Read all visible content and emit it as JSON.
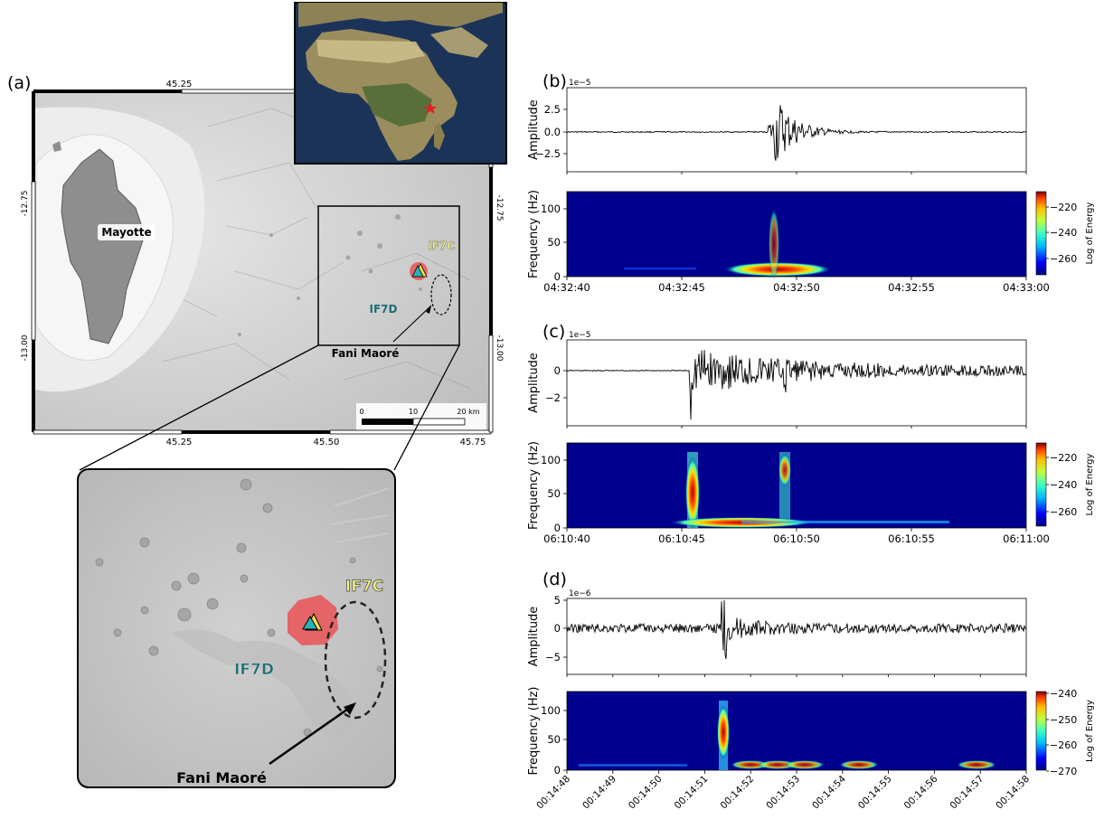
{
  "map_panel": {
    "letter": "(a)",
    "lon_ticks_top": [
      "45.25"
    ],
    "lon_ticks_bottom": [
      "45.25",
      "45.50",
      "45.75"
    ],
    "lat_ticks_left": [
      "-12.75",
      "-13.00"
    ],
    "lat_ticks_right": [
      "-12.75",
      "-13.00"
    ],
    "island_label": "Mayotte",
    "station_c": "IF7C",
    "station_d": "IF7D",
    "volcano_label": "Fani Maoré",
    "scale_labels": [
      "0",
      "10",
      "20 km"
    ]
  },
  "inset_map": {
    "marker": "epicentre-star"
  },
  "zoom_panel": {
    "station_c": "IF7C",
    "station_d": "IF7D",
    "volcano_label": "Fani Maoré"
  },
  "panels": [
    {
      "letter": "(b)",
      "exponent": "1e−5",
      "ylabel": "Amplitude",
      "yticks": [
        "2.5",
        "0.0",
        "−2.5"
      ],
      "spec_ylabel": "Frequency (Hz)",
      "spec_yticks": [
        "100",
        "50",
        "0"
      ],
      "xticks": [
        "04:32:40",
        "04:32:45",
        "04:32:50",
        "04:32:55",
        "04:33:00"
      ],
      "cbar_label": "Log of Energy",
      "cbar_ticks": [
        "−220",
        "−240",
        "−260"
      ]
    },
    {
      "letter": "(c)",
      "exponent": "1e−5",
      "ylabel": "Amplitude",
      "yticks": [
        "0",
        "−2"
      ],
      "spec_ylabel": "Frequency (Hz)",
      "spec_yticks": [
        "100",
        "50",
        "0"
      ],
      "xticks": [
        "06:10:40",
        "06:10:45",
        "06:10:50",
        "06:10:55",
        "06:11:00"
      ],
      "cbar_label": "Log of Energy",
      "cbar_ticks": [
        "−220",
        "−240",
        "−260"
      ]
    },
    {
      "letter": "(d)",
      "exponent": "1e−6",
      "ylabel": "Amplitude",
      "yticks": [
        "5",
        "0",
        "−5"
      ],
      "spec_ylabel": "Frequency (Hz)",
      "spec_yticks": [
        "100",
        "50",
        "0"
      ],
      "xticks": [
        "00:14:48",
        "00:14:49",
        "00:14:50",
        "00:14:51",
        "00:14:52",
        "00:14:53",
        "00:14:54",
        "00:14:55",
        "00:14:56",
        "00:14:57",
        "00:14:58"
      ],
      "cbar_label": "Log of Energy",
      "cbar_ticks": [
        "−240",
        "−250",
        "−260",
        "−270"
      ]
    }
  ],
  "colors": {
    "seismogram": "#000000",
    "spectrogram_bg": "#00008f",
    "station_patch": "#e8595c",
    "station_c_text": "#f4f08a",
    "station_d_text": "#1e6e73",
    "triangle_fill": "#2ab0b8",
    "triangle_inner": "#f2e04a"
  }
}
